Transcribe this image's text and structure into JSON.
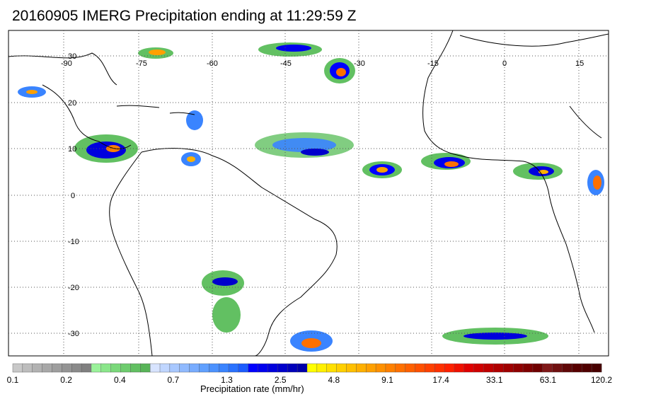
{
  "title": "20160905 IMERG Precipitation ending at 11:29:59 Z",
  "map": {
    "lon_labels": [
      "-90",
      "-75",
      "-60",
      "-45",
      "-30",
      "-15",
      "0",
      "15"
    ],
    "lat_labels": [
      "30",
      "20",
      "10",
      "0",
      "-10",
      "-20",
      "-30"
    ],
    "grid": true
  },
  "colorbar": {
    "title": "Precipitation rate (mm/hr)",
    "tick_labels": [
      "0.1",
      "0.2",
      "0.4",
      "0.7",
      "1.3",
      "2.5",
      "4.8",
      "9.1",
      "17.4",
      "33.1",
      "63.1",
      "120.2"
    ],
    "colors": [
      "#c8c8c8",
      "#bdbdbd",
      "#b2b2b2",
      "#a8a8a8",
      "#9e9e9e",
      "#949494",
      "#8a8a8a",
      "#808080",
      "#9af29a",
      "#8ae68a",
      "#7ad87a",
      "#6ecc6e",
      "#62c062",
      "#58b458",
      "#d8e4ff",
      "#c0d6ff",
      "#a8c8ff",
      "#90baff",
      "#78acff",
      "#60a0ff",
      "#4c92ff",
      "#3a84ff",
      "#2a72ff",
      "#1c5cff",
      "#0000ff",
      "#0000ee",
      "#0000dd",
      "#0000cc",
      "#0000bb",
      "#0000aa",
      "#ffff00",
      "#fff000",
      "#ffe000",
      "#ffd000",
      "#ffc000",
      "#ffb000",
      "#ffa000",
      "#ff9000",
      "#ff8000",
      "#ff7000",
      "#ff6000",
      "#ff5000",
      "#ff4000",
      "#ff3000",
      "#ff2000",
      "#f01000",
      "#e00000",
      "#d00000",
      "#c00000",
      "#b00000",
      "#a00000",
      "#900000",
      "#800000",
      "#700000",
      "#801818",
      "#701010",
      "#600808",
      "#580000",
      "#500000",
      "#480000"
    ]
  }
}
